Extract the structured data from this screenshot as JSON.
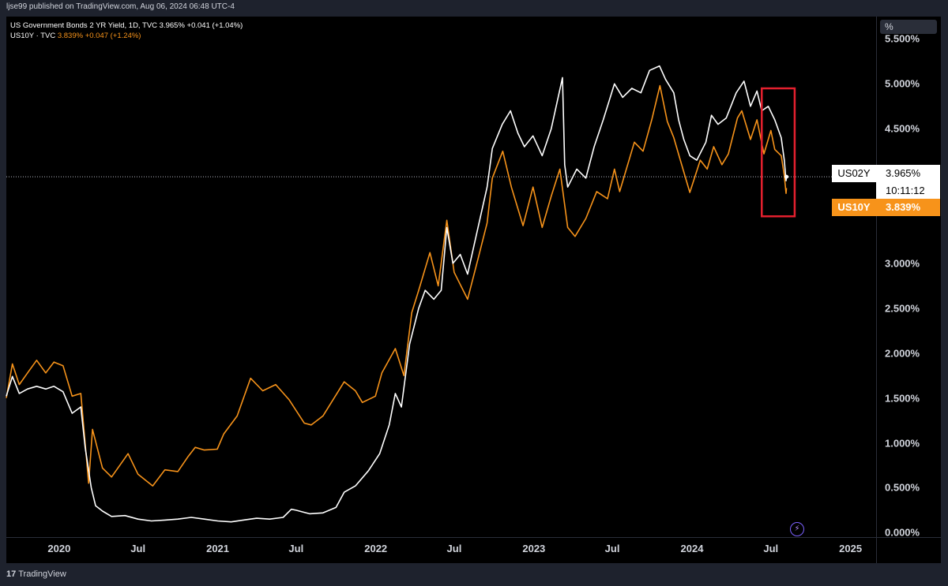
{
  "header": {
    "publish_line": "ljse99 published on TradingView.com, Aug 06, 2024 06:48 UTC-4",
    "legend_1": "US Government Bonds 2 YR Yield, 1D, TVC  3.965%  +0.041 (+1.04%)",
    "legend_2_name": "US10Y · TVC ",
    "legend_2_values": "3.839%  +0.047 (+1.24%)"
  },
  "axis": {
    "unit": "%",
    "ticks": [
      "5.500%",
      "5.000%",
      "4.500%",
      "3.000%",
      "2.500%",
      "2.000%",
      "1.500%",
      "1.000%",
      "0.500%",
      "0.000%"
    ],
    "x_ticks": [
      "2020",
      "Jul",
      "2021",
      "Jul",
      "2022",
      "Jul",
      "2023",
      "Jul",
      "2024",
      "Jul",
      "2025"
    ]
  },
  "tags": {
    "us02y_label": "US02Y",
    "us02y_price": "3.965%",
    "us02y_countdown": "10:11:12",
    "us10y_label": "US10Y",
    "us10y_price": "3.839%"
  },
  "footer": {
    "brand": "TradingView",
    "brand_mark": "17"
  },
  "colors": {
    "background": "#000000",
    "us02y": "#ffffff",
    "us10y": "#f7931a",
    "highlight_box": "#e4202e",
    "text": "#d1d4dc"
  },
  "chart_data": {
    "type": "line",
    "title": "",
    "xlabel": "",
    "ylabel": "",
    "x_range": [
      "2019-09-01",
      "2025-03-01"
    ],
    "ylim": [
      -0.05,
      5.75
    ],
    "grid": false,
    "highlight_box": {
      "x_start": "2024-06-10",
      "x_end": "2024-08-25",
      "y_low": 3.7,
      "y_high": 4.95
    },
    "series": [
      {
        "name": "US02Y",
        "color": "#ffffff",
        "points": [
          [
            "2019-09-01",
            1.52
          ],
          [
            "2019-09-15",
            1.74
          ],
          [
            "2019-10-01",
            1.55
          ],
          [
            "2019-10-20",
            1.6
          ],
          [
            "2019-11-10",
            1.63
          ],
          [
            "2019-12-01",
            1.6
          ],
          [
            "2019-12-20",
            1.63
          ],
          [
            "2020-01-10",
            1.57
          ],
          [
            "2020-01-31",
            1.33
          ],
          [
            "2020-02-20",
            1.4
          ],
          [
            "2020-03-01",
            0.95
          ],
          [
            "2020-03-15",
            0.5
          ],
          [
            "2020-03-25",
            0.3
          ],
          [
            "2020-04-10",
            0.24
          ],
          [
            "2020-05-01",
            0.18
          ],
          [
            "2020-06-01",
            0.19
          ],
          [
            "2020-07-01",
            0.15
          ],
          [
            "2020-08-01",
            0.13
          ],
          [
            "2020-09-01",
            0.14
          ],
          [
            "2020-10-01",
            0.15
          ],
          [
            "2020-11-01",
            0.17
          ],
          [
            "2020-12-01",
            0.15
          ],
          [
            "2021-01-01",
            0.13
          ],
          [
            "2021-02-01",
            0.12
          ],
          [
            "2021-03-01",
            0.14
          ],
          [
            "2021-04-01",
            0.16
          ],
          [
            "2021-05-01",
            0.15
          ],
          [
            "2021-06-01",
            0.17
          ],
          [
            "2021-06-20",
            0.26
          ],
          [
            "2021-07-01",
            0.25
          ],
          [
            "2021-08-01",
            0.21
          ],
          [
            "2021-09-01",
            0.22
          ],
          [
            "2021-10-01",
            0.28
          ],
          [
            "2021-10-20",
            0.45
          ],
          [
            "2021-11-15",
            0.52
          ],
          [
            "2021-12-15",
            0.69
          ],
          [
            "2022-01-10",
            0.88
          ],
          [
            "2022-02-01",
            1.2
          ],
          [
            "2022-02-15",
            1.55
          ],
          [
            "2022-03-01",
            1.4
          ],
          [
            "2022-03-20",
            2.1
          ],
          [
            "2022-04-10",
            2.5
          ],
          [
            "2022-04-25",
            2.7
          ],
          [
            "2022-05-15",
            2.6
          ],
          [
            "2022-06-01",
            2.7
          ],
          [
            "2022-06-14",
            3.4
          ],
          [
            "2022-06-28",
            3.0
          ],
          [
            "2022-07-15",
            3.1
          ],
          [
            "2022-08-01",
            2.88
          ],
          [
            "2022-08-25",
            3.4
          ],
          [
            "2022-09-15",
            3.85
          ],
          [
            "2022-09-27",
            4.28
          ],
          [
            "2022-10-20",
            4.55
          ],
          [
            "2022-11-08",
            4.7
          ],
          [
            "2022-11-25",
            4.45
          ],
          [
            "2022-12-10",
            4.3
          ],
          [
            "2022-12-30",
            4.42
          ],
          [
            "2023-01-20",
            4.2
          ],
          [
            "2023-02-10",
            4.5
          ],
          [
            "2023-03-08",
            5.07
          ],
          [
            "2023-03-13",
            4.1
          ],
          [
            "2023-03-20",
            3.85
          ],
          [
            "2023-04-10",
            4.05
          ],
          [
            "2023-05-01",
            3.95
          ],
          [
            "2023-05-20",
            4.3
          ],
          [
            "2023-06-10",
            4.6
          ],
          [
            "2023-07-06",
            5.0
          ],
          [
            "2023-07-25",
            4.85
          ],
          [
            "2023-08-15",
            4.95
          ],
          [
            "2023-09-05",
            4.9
          ],
          [
            "2023-09-25",
            5.15
          ],
          [
            "2023-10-18",
            5.2
          ],
          [
            "2023-11-01",
            5.05
          ],
          [
            "2023-11-20",
            4.9
          ],
          [
            "2023-12-01",
            4.6
          ],
          [
            "2023-12-13",
            4.38
          ],
          [
            "2023-12-27",
            4.2
          ],
          [
            "2024-01-12",
            4.15
          ],
          [
            "2024-02-02",
            4.35
          ],
          [
            "2024-02-15",
            4.65
          ],
          [
            "2024-03-01",
            4.55
          ],
          [
            "2024-03-20",
            4.62
          ],
          [
            "2024-04-12",
            4.9
          ],
          [
            "2024-04-30",
            5.03
          ],
          [
            "2024-05-15",
            4.75
          ],
          [
            "2024-05-30",
            4.92
          ],
          [
            "2024-06-10",
            4.7
          ],
          [
            "2024-06-25",
            4.75
          ],
          [
            "2024-07-10",
            4.6
          ],
          [
            "2024-07-25",
            4.4
          ],
          [
            "2024-08-01",
            4.15
          ],
          [
            "2024-08-05",
            3.92
          ],
          [
            "2024-08-06",
            3.965
          ]
        ]
      },
      {
        "name": "US10Y",
        "color": "#f7931a",
        "points": [
          [
            "2019-09-01",
            1.5
          ],
          [
            "2019-09-15",
            1.88
          ],
          [
            "2019-10-01",
            1.65
          ],
          [
            "2019-10-20",
            1.78
          ],
          [
            "2019-11-10",
            1.92
          ],
          [
            "2019-12-01",
            1.78
          ],
          [
            "2019-12-20",
            1.9
          ],
          [
            "2020-01-10",
            1.86
          ],
          [
            "2020-01-31",
            1.52
          ],
          [
            "2020-02-20",
            1.55
          ],
          [
            "2020-03-09",
            0.55
          ],
          [
            "2020-03-18",
            1.15
          ],
          [
            "2020-04-10",
            0.72
          ],
          [
            "2020-05-01",
            0.62
          ],
          [
            "2020-06-08",
            0.88
          ],
          [
            "2020-07-01",
            0.65
          ],
          [
            "2020-08-04",
            0.52
          ],
          [
            "2020-09-01",
            0.7
          ],
          [
            "2020-10-01",
            0.68
          ],
          [
            "2020-10-25",
            0.85
          ],
          [
            "2020-11-10",
            0.95
          ],
          [
            "2020-12-01",
            0.92
          ],
          [
            "2020-12-31",
            0.93
          ],
          [
            "2021-01-15",
            1.1
          ],
          [
            "2021-02-15",
            1.3
          ],
          [
            "2021-03-18",
            1.72
          ],
          [
            "2021-04-15",
            1.58
          ],
          [
            "2021-05-15",
            1.65
          ],
          [
            "2021-06-15",
            1.48
          ],
          [
            "2021-07-20",
            1.22
          ],
          [
            "2021-08-05",
            1.2
          ],
          [
            "2021-09-01",
            1.3
          ],
          [
            "2021-10-20",
            1.68
          ],
          [
            "2021-11-15",
            1.58
          ],
          [
            "2021-12-01",
            1.45
          ],
          [
            "2021-12-31",
            1.52
          ],
          [
            "2022-01-15",
            1.78
          ],
          [
            "2022-02-15",
            2.05
          ],
          [
            "2022-03-07",
            1.75
          ],
          [
            "2022-03-25",
            2.45
          ],
          [
            "2022-04-10",
            2.7
          ],
          [
            "2022-05-06",
            3.12
          ],
          [
            "2022-05-25",
            2.75
          ],
          [
            "2022-06-14",
            3.48
          ],
          [
            "2022-07-01",
            2.9
          ],
          [
            "2022-08-01",
            2.6
          ],
          [
            "2022-08-25",
            3.05
          ],
          [
            "2022-09-15",
            3.45
          ],
          [
            "2022-09-27",
            3.95
          ],
          [
            "2022-10-21",
            4.25
          ],
          [
            "2022-11-10",
            3.85
          ],
          [
            "2022-12-07",
            3.42
          ],
          [
            "2022-12-30",
            3.85
          ],
          [
            "2023-01-20",
            3.4
          ],
          [
            "2023-02-10",
            3.75
          ],
          [
            "2023-03-02",
            4.05
          ],
          [
            "2023-03-20",
            3.4
          ],
          [
            "2023-04-06",
            3.3
          ],
          [
            "2023-05-01",
            3.5
          ],
          [
            "2023-05-26",
            3.8
          ],
          [
            "2023-06-20",
            3.72
          ],
          [
            "2023-07-06",
            4.05
          ],
          [
            "2023-07-18",
            3.8
          ],
          [
            "2023-08-21",
            4.35
          ],
          [
            "2023-09-10",
            4.25
          ],
          [
            "2023-09-30",
            4.6
          ],
          [
            "2023-10-19",
            4.98
          ],
          [
            "2023-11-05",
            4.58
          ],
          [
            "2023-11-20",
            4.4
          ],
          [
            "2023-12-05",
            4.15
          ],
          [
            "2023-12-27",
            3.79
          ],
          [
            "2024-01-20",
            4.15
          ],
          [
            "2024-02-05",
            4.05
          ],
          [
            "2024-02-20",
            4.3
          ],
          [
            "2024-03-10",
            4.1
          ],
          [
            "2024-03-25",
            4.22
          ],
          [
            "2024-04-15",
            4.62
          ],
          [
            "2024-04-25",
            4.7
          ],
          [
            "2024-05-15",
            4.38
          ],
          [
            "2024-05-30",
            4.6
          ],
          [
            "2024-06-15",
            4.22
          ],
          [
            "2024-07-01",
            4.48
          ],
          [
            "2024-07-10",
            4.27
          ],
          [
            "2024-07-25",
            4.2
          ],
          [
            "2024-08-01",
            3.98
          ],
          [
            "2024-08-05",
            3.78
          ],
          [
            "2024-08-06",
            3.839
          ]
        ]
      }
    ]
  }
}
